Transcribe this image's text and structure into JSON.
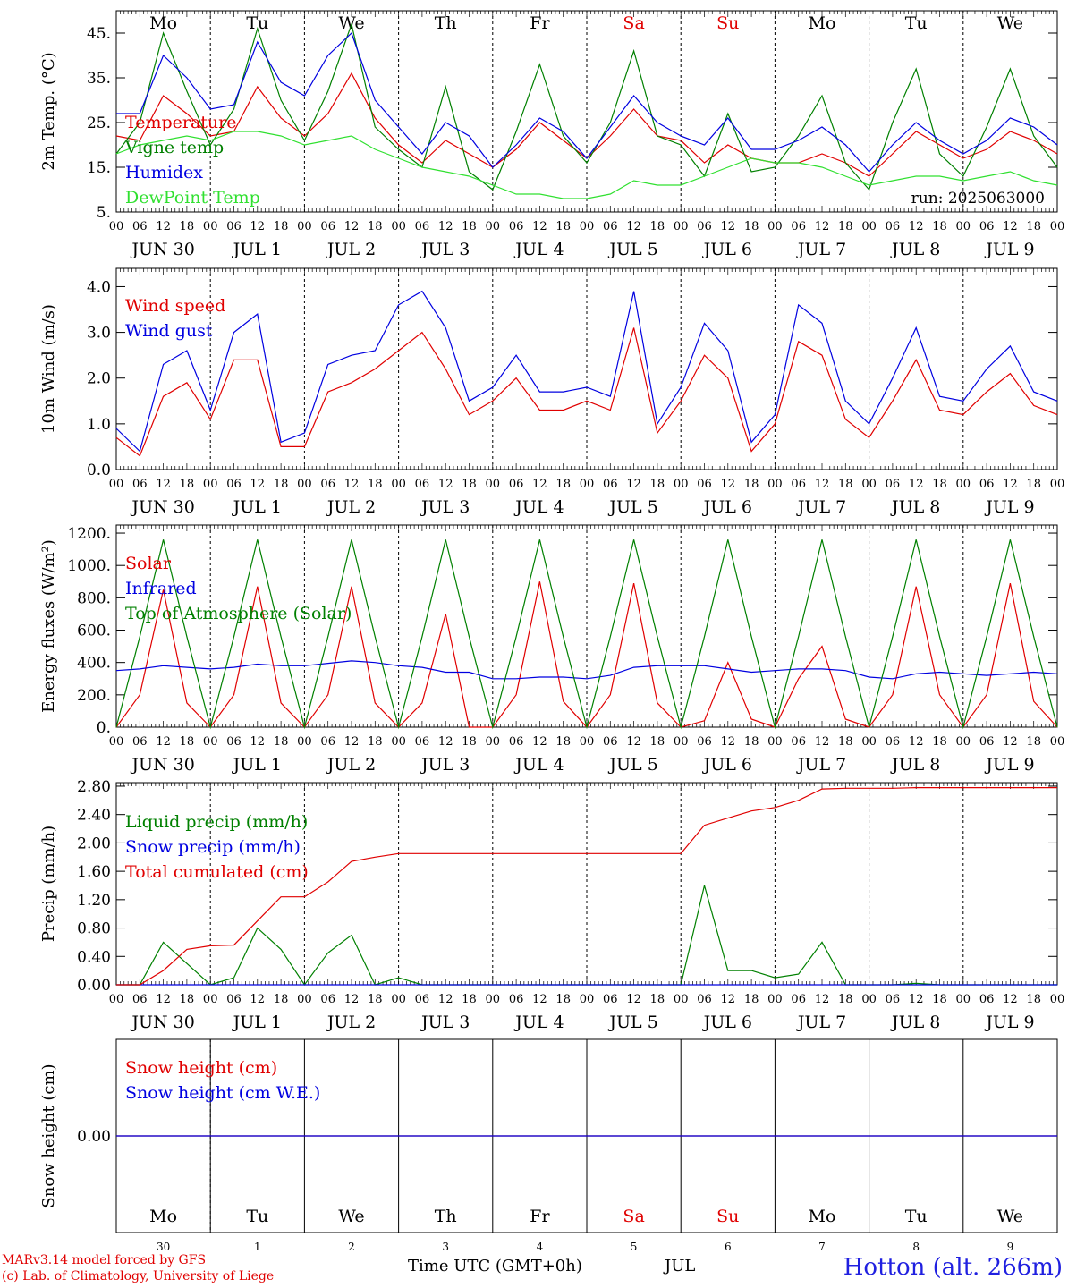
{
  "header": {
    "day_names": [
      "Mo",
      "Tu",
      "We",
      "Th",
      "Fr",
      "Sa",
      "Su",
      "Mo",
      "Tu",
      "We"
    ],
    "day_colors": [
      "#000000",
      "#000000",
      "#000000",
      "#000000",
      "#000000",
      "#e00000",
      "#e00000",
      "#000000",
      "#000000",
      "#000000"
    ],
    "run_label": "run: 2025063000"
  },
  "time_axis": {
    "hour_ticks": [
      "00",
      "06",
      "12",
      "18"
    ],
    "end_tick": "00",
    "dates": [
      "JUN 30",
      "JUL  1",
      "JUL  2",
      "JUL  3",
      "JUL  4",
      "JUL  5",
      "JUL  6",
      "JUL  7",
      "JUL  8",
      "JUL  9"
    ],
    "bottom_day_numbers": [
      "30",
      "1",
      "2",
      "3",
      "4",
      "5",
      "6",
      "7",
      "8",
      "9"
    ],
    "xlabel": "Time UTC (GMT+0h)",
    "month_label": "JUL"
  },
  "footer": {
    "credit_line1": "MARv3.14 model forced by GFS",
    "credit_line2": "(c) Lab. of Climatology, University of Liege",
    "station": "Hotton (alt. 266m)"
  },
  "chart_data": [
    {
      "type": "line",
      "ylabel": "2m Temp. (°C)",
      "ylim": [
        5,
        50
      ],
      "yticks": [
        "5.",
        "15.",
        "25.",
        "35.",
        "45."
      ],
      "x_unit": "hours since 2025-06-30 00 UTC",
      "series": [
        {
          "name": "Temperature",
          "color": "#e00000",
          "x": [
            0,
            6,
            12,
            18,
            24,
            30,
            36,
            42,
            48,
            54,
            60,
            66,
            72,
            78,
            84,
            90,
            96,
            102,
            108,
            114,
            120,
            126,
            132,
            138,
            144,
            150,
            156,
            162,
            168,
            174,
            180,
            186,
            192,
            198,
            204,
            210,
            216,
            222,
            228,
            234,
            240
          ],
          "y": [
            22,
            21,
            31,
            27,
            22,
            23,
            33,
            26,
            22,
            27,
            36,
            26,
            20,
            16,
            21,
            18,
            15,
            19,
            25,
            21,
            17,
            22,
            28,
            22,
            21,
            16,
            20,
            17,
            16,
            16,
            18,
            16,
            13,
            18,
            23,
            20,
            17,
            19,
            23,
            21,
            18
          ]
        },
        {
          "name": "Vigne temp",
          "color": "#008000",
          "x": [
            0,
            6,
            12,
            18,
            24,
            30,
            36,
            42,
            48,
            54,
            60,
            66,
            72,
            78,
            84,
            90,
            96,
            102,
            108,
            114,
            120,
            126,
            132,
            138,
            144,
            150,
            156,
            162,
            168,
            174,
            180,
            186,
            192,
            198,
            204,
            210,
            216,
            222,
            228,
            234,
            240
          ],
          "y": [
            18,
            25,
            45,
            32,
            20,
            28,
            46,
            30,
            21,
            32,
            47,
            24,
            19,
            15,
            33,
            14,
            10,
            23,
            38,
            22,
            16,
            25,
            41,
            22,
            20,
            13,
            27,
            14,
            15,
            22,
            31,
            16,
            10,
            25,
            37,
            18,
            13,
            24,
            37,
            22,
            15
          ]
        },
        {
          "name": "Humidex",
          "color": "#0000e0",
          "x": [
            0,
            6,
            12,
            18,
            24,
            30,
            36,
            42,
            48,
            54,
            60,
            66,
            72,
            78,
            84,
            90,
            96,
            102,
            108,
            114,
            120,
            126,
            132,
            138,
            144,
            150,
            156,
            162,
            168,
            174,
            180,
            186,
            192,
            198,
            204,
            210,
            216,
            222,
            228,
            234,
            240
          ],
          "y": [
            27,
            27,
            40,
            35,
            28,
            29,
            43,
            34,
            31,
            40,
            45,
            30,
            24,
            18,
            25,
            22,
            15,
            20,
            26,
            23,
            17,
            24,
            31,
            25,
            22,
            20,
            26,
            19,
            19,
            21,
            24,
            20,
            14,
            20,
            25,
            21,
            18,
            21,
            26,
            24,
            20
          ]
        },
        {
          "name": "DewPoint Temp",
          "color": "#30e030",
          "x": [
            0,
            6,
            12,
            18,
            24,
            30,
            36,
            42,
            48,
            54,
            60,
            66,
            72,
            78,
            84,
            90,
            96,
            102,
            108,
            114,
            120,
            126,
            132,
            138,
            144,
            150,
            156,
            162,
            168,
            174,
            180,
            186,
            192,
            198,
            204,
            210,
            216,
            222,
            228,
            234,
            240
          ],
          "y": [
            18,
            20,
            21,
            22,
            21,
            23,
            23,
            22,
            20,
            21,
            22,
            19,
            17,
            15,
            14,
            13,
            11,
            9,
            9,
            8,
            8,
            9,
            12,
            11,
            11,
            13,
            15,
            17,
            16,
            16,
            15,
            13,
            11,
            12,
            13,
            13,
            12,
            13,
            14,
            12,
            11
          ]
        }
      ]
    },
    {
      "type": "line",
      "ylabel": "10m Wind (m/s)",
      "ylim": [
        0,
        4.4
      ],
      "yticks": [
        "0.0",
        "1.0",
        "2.0",
        "3.0",
        "4.0"
      ],
      "x_unit": "hours since 2025-06-30 00 UTC",
      "series": [
        {
          "name": "Wind speed",
          "color": "#e00000",
          "x": [
            0,
            6,
            12,
            18,
            24,
            30,
            36,
            42,
            48,
            54,
            60,
            66,
            72,
            78,
            84,
            90,
            96,
            102,
            108,
            114,
            120,
            126,
            132,
            138,
            144,
            150,
            156,
            162,
            168,
            174,
            180,
            186,
            192,
            198,
            204,
            210,
            216,
            222,
            228,
            234,
            240
          ],
          "y": [
            0.7,
            0.3,
            1.6,
            1.9,
            1.1,
            2.4,
            2.4,
            0.5,
            0.5,
            1.7,
            1.9,
            2.2,
            2.6,
            3.0,
            2.2,
            1.2,
            1.5,
            2.0,
            1.3,
            1.3,
            1.5,
            1.3,
            3.1,
            0.8,
            1.5,
            2.5,
            2.0,
            0.4,
            1.0,
            2.8,
            2.5,
            1.1,
            0.7,
            1.5,
            2.4,
            1.3,
            1.2,
            1.7,
            2.1,
            1.4,
            1.2
          ]
        },
        {
          "name": "Wind gust",
          "color": "#0000e0",
          "x": [
            0,
            6,
            12,
            18,
            24,
            30,
            36,
            42,
            48,
            54,
            60,
            66,
            72,
            78,
            84,
            90,
            96,
            102,
            108,
            114,
            120,
            126,
            132,
            138,
            144,
            150,
            156,
            162,
            168,
            174,
            180,
            186,
            192,
            198,
            204,
            210,
            216,
            222,
            228,
            234,
            240
          ],
          "y": [
            0.9,
            0.4,
            2.3,
            2.6,
            1.3,
            3.0,
            3.4,
            0.6,
            0.8,
            2.3,
            2.5,
            2.6,
            3.6,
            3.9,
            3.1,
            1.5,
            1.8,
            2.5,
            1.7,
            1.7,
            1.8,
            1.6,
            3.9,
            1.0,
            1.8,
            3.2,
            2.6,
            0.6,
            1.2,
            3.6,
            3.2,
            1.5,
            1.0,
            2.0,
            3.1,
            1.6,
            1.5,
            2.2,
            2.7,
            1.7,
            1.5
          ]
        }
      ]
    },
    {
      "type": "line",
      "ylabel": "Energy fluxes (W/m²)",
      "ylim": [
        0,
        1250
      ],
      "yticks": [
        "0.",
        "200.",
        "400.",
        "600.",
        "800.",
        "1000.",
        "1200."
      ],
      "x_unit": "hours since 2025-06-30 00 UTC",
      "series": [
        {
          "name": "Solar",
          "color": "#e00000",
          "x": [
            0,
            6,
            12,
            18,
            24,
            30,
            36,
            42,
            48,
            54,
            60,
            66,
            72,
            78,
            84,
            90,
            96,
            102,
            108,
            114,
            120,
            126,
            132,
            138,
            144,
            150,
            156,
            162,
            168,
            174,
            180,
            186,
            192,
            198,
            204,
            210,
            216,
            222,
            228,
            234,
            240
          ],
          "y": [
            0,
            200,
            850,
            150,
            0,
            200,
            870,
            150,
            0,
            200,
            870,
            150,
            0,
            150,
            700,
            0,
            0,
            200,
            900,
            160,
            0,
            200,
            890,
            150,
            0,
            40,
            400,
            50,
            0,
            300,
            500,
            50,
            0,
            200,
            870,
            200,
            0,
            200,
            890,
            160,
            0
          ]
        },
        {
          "name": "Infrared",
          "color": "#0000e0",
          "x": [
            0,
            6,
            12,
            18,
            24,
            30,
            36,
            42,
            48,
            54,
            60,
            66,
            72,
            78,
            84,
            90,
            96,
            102,
            108,
            114,
            120,
            126,
            132,
            138,
            144,
            150,
            156,
            162,
            168,
            174,
            180,
            186,
            192,
            198,
            204,
            210,
            216,
            222,
            228,
            234,
            240
          ],
          "y": [
            350,
            360,
            380,
            370,
            360,
            370,
            390,
            380,
            380,
            395,
            410,
            400,
            380,
            370,
            340,
            340,
            300,
            300,
            310,
            310,
            300,
            320,
            370,
            380,
            380,
            380,
            360,
            340,
            350,
            360,
            360,
            350,
            310,
            300,
            330,
            340,
            330,
            320,
            330,
            340,
            330
          ]
        },
        {
          "name": "Top of Atmosphere (Solar)",
          "color": "#008000",
          "x": [
            0,
            6,
            12,
            18,
            24,
            30,
            36,
            42,
            48,
            54,
            60,
            66,
            72,
            78,
            84,
            90,
            96,
            102,
            108,
            114,
            120,
            126,
            132,
            138,
            144,
            150,
            156,
            162,
            168,
            174,
            180,
            186,
            192,
            198,
            204,
            210,
            216,
            222,
            228,
            234,
            240
          ],
          "y": [
            0,
            560,
            1160,
            560,
            0,
            560,
            1160,
            560,
            0,
            560,
            1160,
            560,
            0,
            560,
            1160,
            560,
            0,
            560,
            1160,
            560,
            0,
            560,
            1160,
            560,
            0,
            560,
            1160,
            560,
            0,
            560,
            1160,
            560,
            0,
            560,
            1160,
            560,
            0,
            560,
            1160,
            560,
            0
          ]
        }
      ]
    },
    {
      "type": "line",
      "ylabel": "Precip (mm/h)",
      "ylim": [
        0,
        2.85
      ],
      "yticks": [
        "0.00",
        "0.40",
        "0.80",
        "1.20",
        "1.60",
        "2.00",
        "2.40",
        "2.80"
      ],
      "x_unit": "hours since 2025-06-30 00 UTC",
      "series": [
        {
          "name": "Liquid precip (mm/h)",
          "color": "#008000",
          "x": [
            0,
            6,
            12,
            18,
            24,
            30,
            36,
            42,
            48,
            54,
            60,
            66,
            72,
            78,
            84,
            90,
            96,
            102,
            108,
            114,
            120,
            126,
            132,
            138,
            144,
            150,
            156,
            162,
            168,
            174,
            180,
            186,
            192,
            198,
            204,
            210,
            216,
            222,
            228,
            234,
            240
          ],
          "y": [
            0,
            0,
            0.6,
            0.3,
            0,
            0.1,
            0.8,
            0.5,
            0,
            0.45,
            0.7,
            0,
            0.1,
            0,
            0,
            0,
            0,
            0,
            0,
            0,
            0,
            0,
            0,
            0,
            0,
            1.4,
            0.2,
            0.2,
            0.1,
            0.15,
            0.6,
            0,
            0,
            0,
            0.02,
            0,
            0,
            0,
            0,
            0,
            0
          ]
        },
        {
          "name": "Snow precip (mm/h)",
          "color": "#0000e0",
          "x": [
            0,
            240
          ],
          "y": [
            0,
            0
          ]
        },
        {
          "name": "Total cumulated (cm)",
          "color": "#e00000",
          "x": [
            0,
            6,
            12,
            18,
            24,
            30,
            36,
            42,
            48,
            54,
            60,
            66,
            72,
            78,
            84,
            90,
            96,
            102,
            108,
            114,
            120,
            126,
            132,
            138,
            144,
            150,
            156,
            162,
            168,
            174,
            180,
            186,
            192,
            198,
            204,
            210,
            216,
            222,
            228,
            234,
            240
          ],
          "y": [
            0,
            0,
            0.2,
            0.5,
            0.55,
            0.56,
            0.9,
            1.24,
            1.24,
            1.45,
            1.74,
            1.8,
            1.85,
            1.85,
            1.85,
            1.85,
            1.85,
            1.85,
            1.85,
            1.85,
            1.85,
            1.85,
            1.85,
            1.85,
            1.85,
            2.25,
            2.35,
            2.45,
            2.5,
            2.6,
            2.76,
            2.77,
            2.77,
            2.77,
            2.78,
            2.78,
            2.78,
            2.78,
            2.78,
            2.78,
            2.78
          ]
        }
      ]
    },
    {
      "type": "line",
      "ylabel": "Snow height (cm)",
      "ylim": [
        -1,
        1
      ],
      "yticks": [
        "0.00"
      ],
      "x_unit": "hours since 2025-06-30 00 UTC",
      "series": [
        {
          "name": "Snow height (cm)",
          "color": "#e00000",
          "x": [
            0,
            240
          ],
          "y": [
            0,
            0
          ]
        },
        {
          "name": "Snow height (cm W.E.)",
          "color": "#0000e0",
          "x": [
            0,
            240
          ],
          "y": [
            0,
            0
          ]
        }
      ]
    }
  ]
}
